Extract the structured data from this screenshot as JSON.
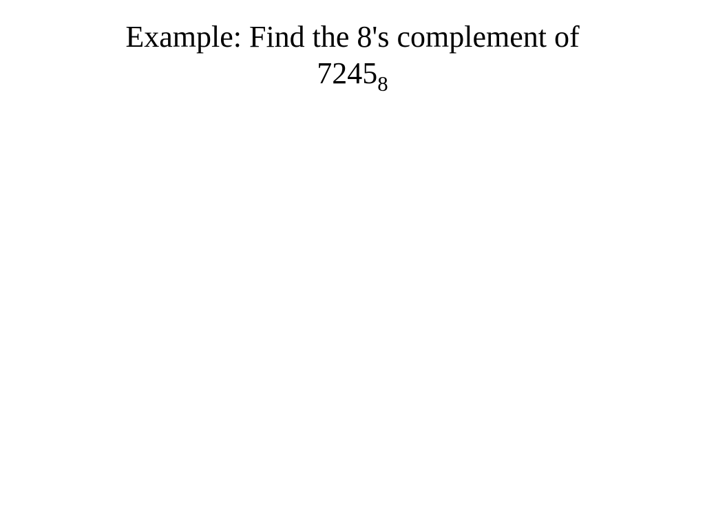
{
  "slide": {
    "title_line1": "Example: Find the 8's complement of",
    "title_number": "7245",
    "title_subscript": "8",
    "background_color": "#ffffff",
    "text_color": "#000000",
    "font_family": "Times New Roman",
    "title_fontsize": 44
  }
}
